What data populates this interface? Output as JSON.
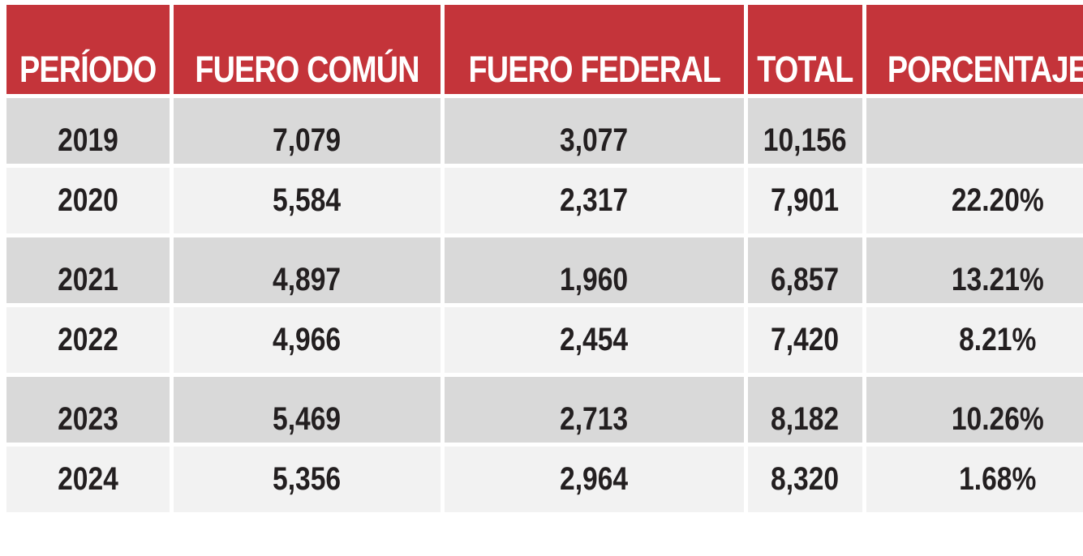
{
  "chart_data": {
    "type": "table",
    "columns": [
      "PERÍODO",
      "FUERO COMÚN",
      "FUERO FEDERAL",
      "TOTAL",
      "PORCENTAJES"
    ],
    "rows": [
      [
        "2019",
        "7,079",
        "3,077",
        "10,156",
        ""
      ],
      [
        "2020",
        "5,584",
        "2,317",
        "7,901",
        "22.20%"
      ],
      [
        "2021",
        "4,897",
        "1,960",
        "6,857",
        "13.21%"
      ],
      [
        "2022",
        "4,966",
        "2,454",
        "7,420",
        "8.21%"
      ],
      [
        "2023",
        "5,469",
        "2,713",
        "8,182",
        "10.26%"
      ],
      [
        "2024",
        "5,356",
        "2,964",
        "8,320",
        "1.68%"
      ]
    ],
    "colors": {
      "header_bg": "#c4343a",
      "header_text": "#ffffff",
      "row_odd": "#d9d9d9",
      "row_even": "#f2f2f2",
      "cell_text": "#231f20"
    }
  }
}
